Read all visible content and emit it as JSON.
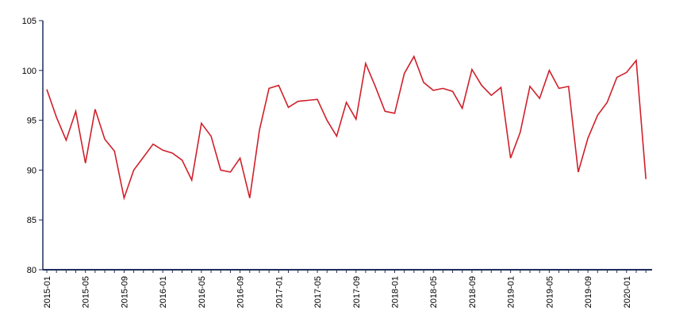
{
  "colors": {
    "line": "#d0202a",
    "axis": "#1f2d5c",
    "text": "#000000",
    "background": "#ffffff"
  },
  "chart_data": {
    "type": "line",
    "title": "",
    "xlabel": "",
    "ylabel": "",
    "ylim": [
      80,
      105
    ],
    "yticks": [
      80,
      85,
      90,
      95,
      100,
      105
    ],
    "grid": false,
    "legend": "none",
    "x_tick_labels": [
      "2015-01",
      "2015-05",
      "2015-09",
      "2016-01",
      "2016-05",
      "2016-09",
      "2017-01",
      "2017-05",
      "2017-09",
      "2018-01",
      "2018-05",
      "2018-09",
      "2019-01",
      "2019-05",
      "2019-09",
      "2020-01"
    ],
    "x": [
      "2015-01",
      "2015-02",
      "2015-03",
      "2015-04",
      "2015-05",
      "2015-06",
      "2015-07",
      "2015-08",
      "2015-09",
      "2015-10",
      "2015-11",
      "2015-12",
      "2016-01",
      "2016-02",
      "2016-03",
      "2016-04",
      "2016-05",
      "2016-06",
      "2016-07",
      "2016-08",
      "2016-09",
      "2016-10",
      "2016-11",
      "2016-12",
      "2017-01",
      "2017-02",
      "2017-03",
      "2017-04",
      "2017-05",
      "2017-06",
      "2017-07",
      "2017-08",
      "2017-09",
      "2017-10",
      "2017-11",
      "2017-12",
      "2018-01",
      "2018-02",
      "2018-03",
      "2018-04",
      "2018-05",
      "2018-06",
      "2018-07",
      "2018-08",
      "2018-09",
      "2018-10",
      "2018-11",
      "2018-12",
      "2019-01",
      "2019-02",
      "2019-03",
      "2019-04",
      "2019-05",
      "2019-06",
      "2019-07",
      "2019-08",
      "2019-09",
      "2019-10",
      "2019-11",
      "2019-12",
      "2020-01",
      "2020-02",
      "2020-03"
    ],
    "series": [
      {
        "values": [
          98.1,
          95.3,
          93.0,
          95.9,
          90.7,
          96.1,
          93.1,
          91.9,
          87.2,
          90.0,
          91.3,
          92.6,
          92.0,
          91.7,
          91.0,
          89.0,
          94.7,
          93.4,
          90.0,
          89.8,
          91.2,
          87.2,
          94.0,
          98.2,
          98.5,
          96.3,
          96.9,
          97.0,
          97.1,
          95.0,
          93.4,
          96.8,
          95.1,
          100.7,
          98.4,
          95.9,
          95.7,
          99.7,
          101.4,
          98.8,
          98.0,
          98.2,
          97.9,
          96.2,
          100.1,
          98.5,
          97.5,
          98.3,
          91.2,
          93.8,
          98.4,
          97.2,
          100.0,
          98.2,
          98.4,
          89.8,
          93.2,
          95.5,
          96.8,
          99.3,
          99.8,
          101.0,
          89.1
        ]
      }
    ]
  }
}
